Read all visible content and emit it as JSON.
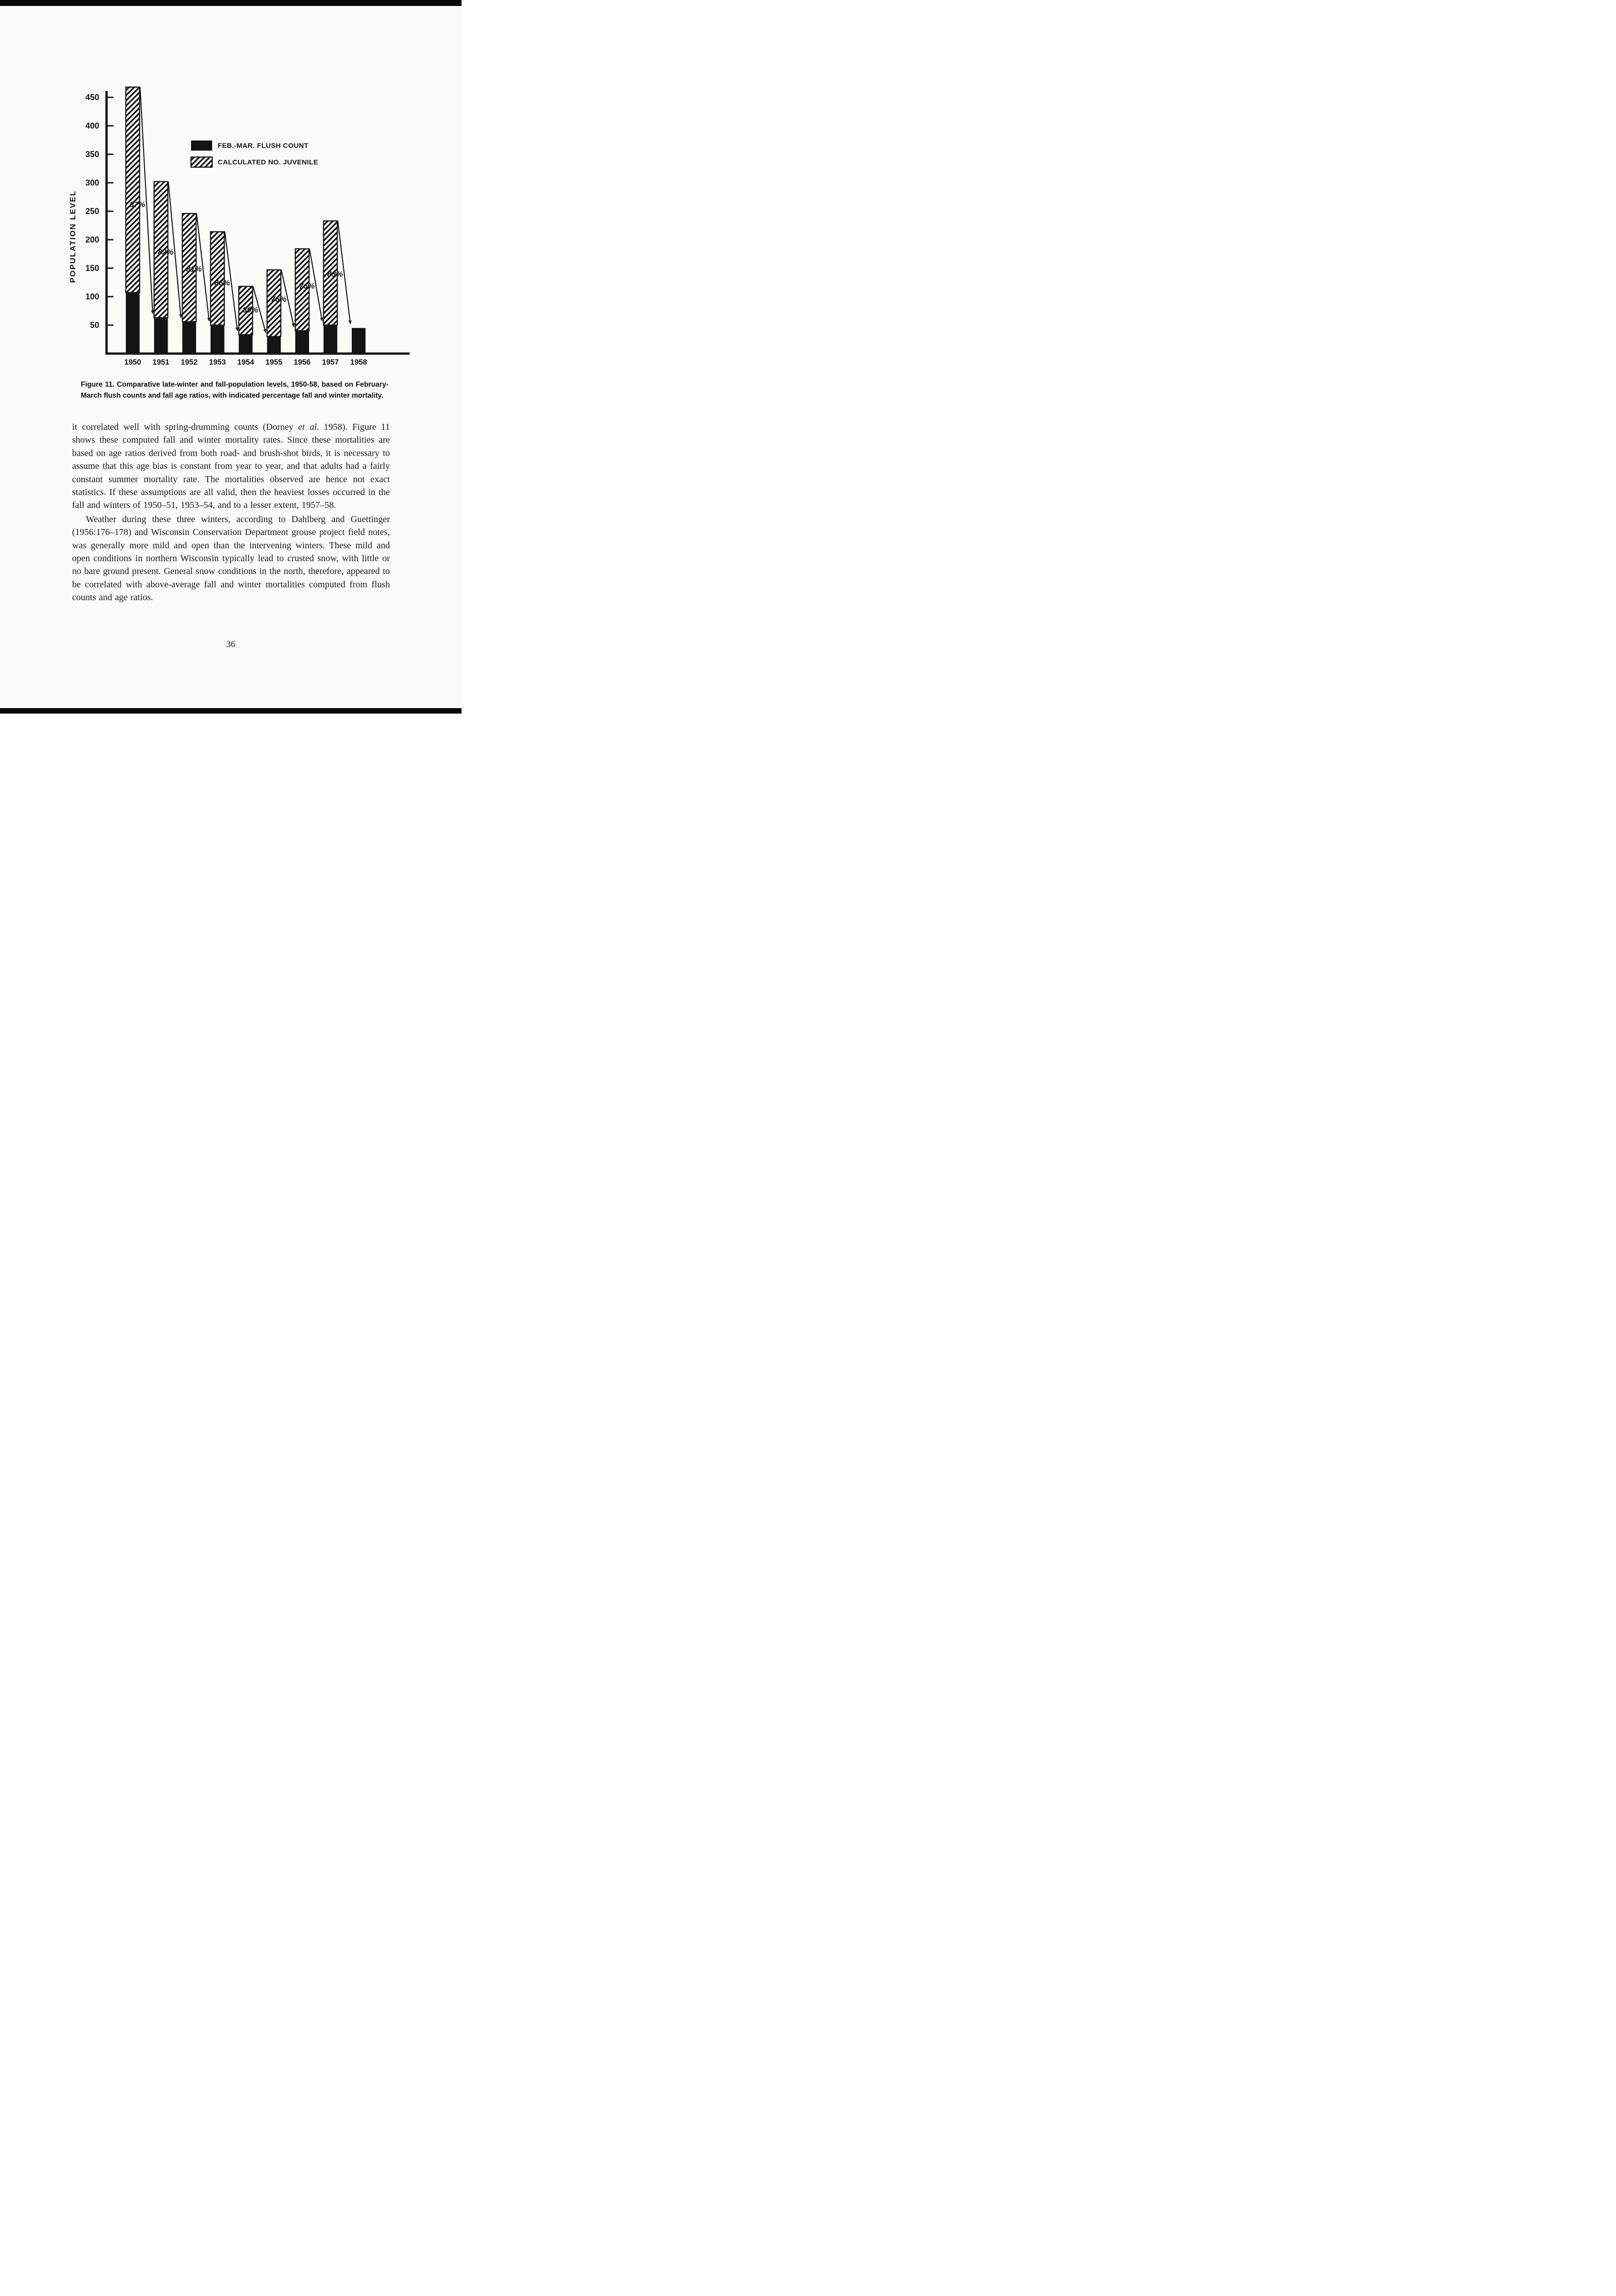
{
  "page": {
    "number": "36"
  },
  "figure": {
    "caption_label": "Figure 11.",
    "caption_text": "Comparative late-winter and fall-population levels, 1950-58, based on February-March flush counts and fall age ratios, with indicated percentage fall and winter mortality."
  },
  "body": {
    "para1_parts": {
      "before": "it correlated well with spring-drumming counts (Dorney ",
      "italic": "et al.",
      "after": " 1958). Figure 11 shows these computed fall and winter mortality rates. Since these mortalities are based on age ratios derived from both road- and brush-shot birds, it is necessary to assume that this age bias is constant from year to year, and that adults had a fairly constant summer mortality rate. The mortalities observed are hence not exact statistics. If these assumptions are all valid, then the heaviest losses occurred in the fall and winters of 1950–51, 1953–54, and to a lesser extent, 1957–58."
    },
    "para2": "Weather during these three winters, according to Dahlberg and Guettinger (1956:176–178) and Wisconsin Conservation Department grouse project field notes, was generally more mild and open than the intervening winters. These mild and open conditions in northern Wisconsin typically lead to crusted snow, with little or no bare ground present. General snow conditions in the north, therefore, appeared to be correlated with above-average fall and winter mortalities computed from flush counts and age ratios."
  },
  "chart_data": {
    "type": "bar",
    "title": "",
    "xlabel": "",
    "ylabel": "POPULATION LEVEL",
    "ylim": [
      0,
      470
    ],
    "yticks": [
      50,
      100,
      150,
      200,
      250,
      300,
      350,
      400,
      450
    ],
    "categories": [
      "1950",
      "1951",
      "1952",
      "1953",
      "1954",
      "1955",
      "1956",
      "1957",
      "1958"
    ],
    "series": [
      {
        "name": "FEB.-MAR. FLUSH COUNT",
        "style": "solid",
        "values": [
          107,
          63,
          56,
          50,
          33,
          30,
          40,
          50,
          45
        ]
      },
      {
        "name": "CALCULATED NO. JUVENILE",
        "style": "hatched",
        "values": [
          361,
          239,
          190,
          164,
          85,
          117,
          144,
          183,
          0
        ]
      }
    ],
    "mortality_labels": [
      "87%",
      "82%",
      "81%",
      "86%",
      "80%",
      "76%",
      "76%",
      "83%"
    ],
    "legend": [
      {
        "label": "FEB.-MAR. FLUSH COUNT",
        "style": "solid"
      },
      {
        "label": "CALCULATED NO. JUVENILE",
        "style": "hatched"
      }
    ],
    "grid": false,
    "legend_position": "upper-middle"
  }
}
